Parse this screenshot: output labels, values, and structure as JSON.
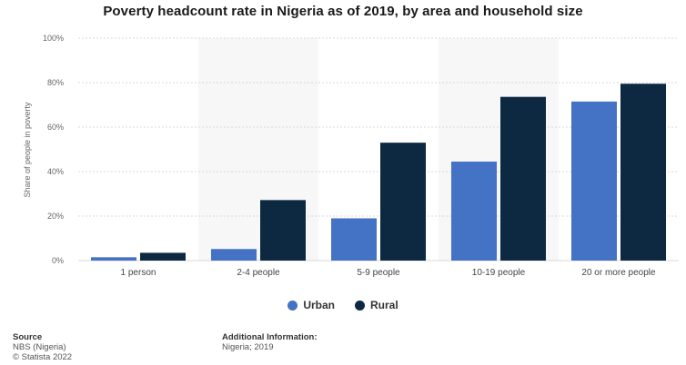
{
  "chart_data": {
    "type": "bar",
    "title": "Poverty headcount rate in Nigeria as of 2019, by area and household size",
    "xlabel": "",
    "ylabel": "Share of people in poverty",
    "categories": [
      "1 person",
      "2-4 people",
      "5-9 people",
      "10-19 people",
      "20 or more people"
    ],
    "series": [
      {
        "name": "Urban",
        "values": [
          1.5,
          5.2,
          19.0,
          44.5,
          71.5
        ]
      },
      {
        "name": "Rural",
        "values": [
          3.5,
          27.2,
          53.0,
          73.6,
          79.5
        ]
      }
    ],
    "ylim": [
      0,
      100
    ],
    "yticks": [
      0,
      20,
      40,
      60,
      80,
      100
    ],
    "ytick_labels": [
      "0%",
      "20%",
      "40%",
      "60%",
      "80%",
      "100%"
    ],
    "grid": true,
    "legend_position": "bottom-center",
    "colors": {
      "Urban": "#4472c4",
      "Rural": "#0d2841"
    }
  },
  "footer": {
    "source_heading": "Source",
    "source_line1": "NBS (Nigeria)",
    "source_line2": "© Statista 2022",
    "info_heading": "Additional Information:",
    "info_line1": "Nigeria; 2019"
  }
}
